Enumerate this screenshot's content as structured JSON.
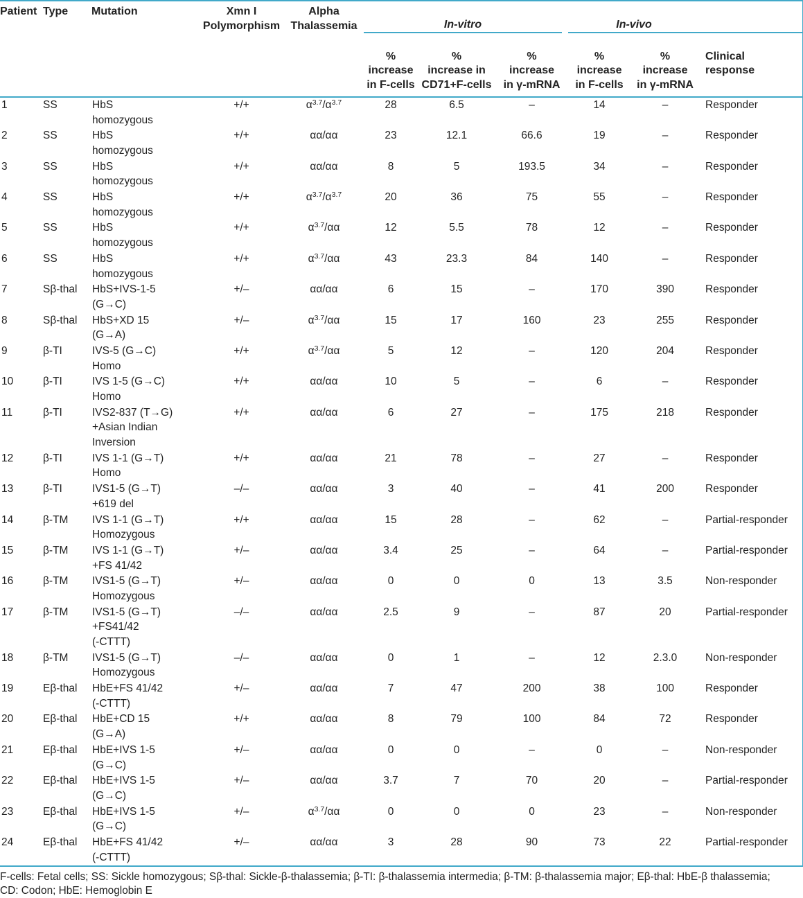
{
  "colors": {
    "rule": "#41a9c9",
    "text": "#232323"
  },
  "table": {
    "header": {
      "patient": "Patient",
      "type": "Type",
      "mutation": "Mutation",
      "xmn": "Xmn I\nPolymorphism",
      "alpha": "Alpha\nThalassemia",
      "invitro": "In-vitro",
      "invivo": "In-vivo",
      "sub_vitro_fcells": "%\nincrease\nin F-cells",
      "sub_vitro_cd71": "%\nincrease in\nCD71+F-cells",
      "sub_vitro_mrna": "%\nincrease\nin γ-mRNA",
      "sub_vivo_fcells": "%\nincrease\nin F-cells",
      "sub_vivo_mrna": "%\nincrease\nin γ-mRNA",
      "clinical": "Clinical\nresponse"
    },
    "rows": [
      [
        "1",
        "SS",
        "HbS\nhomozygous",
        "+/+",
        "α^3.7/α^3.7",
        "28",
        "6.5",
        "–",
        "14",
        "–",
        "Responder"
      ],
      [
        "2",
        "SS",
        "HbS\nhomozygous",
        "+/+",
        "αα/αα",
        "23",
        "12.1",
        "66.6",
        "19",
        "–",
        "Responder"
      ],
      [
        "3",
        "SS",
        "HbS\nhomozygous",
        "+/+",
        "αα/αα",
        "8",
        "5",
        "193.5",
        "34",
        "–",
        "Responder"
      ],
      [
        "4",
        "SS",
        "HbS\nhomozygous",
        "+/+",
        "α^3.7/α^3.7",
        "20",
        "36",
        "75",
        "55",
        "–",
        "Responder"
      ],
      [
        "5",
        "SS",
        "HbS\nhomozygous",
        "+/+",
        "α^3.7/αα",
        "12",
        "5.5",
        "78",
        "12",
        "–",
        "Responder"
      ],
      [
        "6",
        "SS",
        "HbS\nhomozygous",
        "+/+",
        "α^3.7/αα",
        "43",
        "23.3",
        "84",
        "140",
        "–",
        "Responder"
      ],
      [
        "7",
        "Sβ-thal",
        "HbS+IVS-1-5\n(G→C)",
        "+/–",
        "αα/αα",
        "6",
        "15",
        "–",
        "170",
        "390",
        "Responder"
      ],
      [
        "8",
        "Sβ-thal",
        "HbS+XD 15\n(G→A)",
        "+/–",
        "α^3.7/αα",
        "15",
        "17",
        "160",
        "23",
        "255",
        "Responder"
      ],
      [
        "9",
        "β-TI",
        "IVS-5 (G→C)\nHomo",
        "+/+",
        "α^3.7/αα",
        "5",
        "12",
        "–",
        "120",
        "204",
        "Responder"
      ],
      [
        "10",
        "β-TI",
        "IVS 1-5 (G→C)\nHomo",
        "+/+",
        "αα/αα",
        "10",
        "5",
        "–",
        "6",
        "–",
        "Responder"
      ],
      [
        "11",
        "β-TI",
        "IVS2-837 (T→G)\n+Asian Indian\nInversion",
        "+/+",
        "αα/αα",
        "6",
        "27",
        "–",
        "175",
        "218",
        "Responder"
      ],
      [
        "12",
        "β-TI",
        "IVS 1-1 (G→T)\nHomo",
        "+/+",
        "αα/αα",
        "21",
        "78",
        "–",
        "27",
        "–",
        "Responder"
      ],
      [
        "13",
        "β-TI",
        "IVS1-5 (G→T)\n+619 del",
        "–/–",
        "αα/αα",
        "3",
        "40",
        "–",
        "41",
        "200",
        "Responder"
      ],
      [
        "14",
        "β-TM",
        "IVS 1-1 (G→T)\nHomozygous",
        "+/+",
        "αα/αα",
        "15",
        "28",
        "–",
        "62",
        "–",
        "Partial-responder"
      ],
      [
        "15",
        "β-TM",
        "IVS 1-1 (G→T)\n+FS 41/42",
        "+/–",
        "αα/αα",
        "3.4",
        "25",
        "–",
        "64",
        "–",
        "Partial-responder"
      ],
      [
        "16",
        "β-TM",
        "IVS1-5 (G→T)\nHomozygous",
        "+/–",
        "αα/αα",
        "0",
        "0",
        "0",
        "13",
        "3.5",
        "Non-responder"
      ],
      [
        "17",
        "β-TM",
        "IVS1-5 (G→T)\n+FS41/42\n(-CTTT)",
        "–/–",
        "αα/αα",
        "2.5",
        "9",
        "–",
        "87",
        "20",
        "Partial-responder"
      ],
      [
        "18",
        "β-TM",
        "IVS1-5 (G→T)\nHomozygous",
        "–/–",
        "αα/αα",
        "0",
        "1",
        "–",
        "12",
        "2.3.0",
        "Non-responder"
      ],
      [
        "19",
        "Eβ-thal",
        "HbE+FS 41/42\n(-CTTT)",
        "+/–",
        "αα/αα",
        "7",
        "47",
        "200",
        "38",
        "100",
        "Responder"
      ],
      [
        "20",
        "Eβ-thal",
        "HbE+CD 15\n(G→A)",
        "+/+",
        "αα/αα",
        "8",
        "79",
        "100",
        "84",
        "72",
        "Responder"
      ],
      [
        "21",
        "Eβ-thal",
        "HbE+IVS 1-5\n(G→C)",
        "+/–",
        "αα/αα",
        "0",
        "0",
        "–",
        "0",
        "–",
        "Non-responder"
      ],
      [
        "22",
        "Eβ-thal",
        "HbE+IVS 1-5\n(G→C)",
        "+/–",
        "αα/αα",
        "3.7",
        "7",
        "70",
        "20",
        "–",
        "Partial-responder"
      ],
      [
        "23",
        "Eβ-thal",
        "HbE+IVS 1-5\n(G→C)",
        "+/–",
        "α^3.7/αα",
        "0",
        "0",
        "0",
        "23",
        "–",
        "Non-responder"
      ],
      [
        "24",
        "Eβ-thal",
        "HbE+FS 41/42\n(-CTTT)",
        "+/–",
        "αα/αα",
        "3",
        "28",
        "90",
        "73",
        "22",
        "Partial-responder"
      ]
    ],
    "footnote": "F-cells: Fetal cells; SS: Sickle homozygous; Sβ-thal: Sickle-β-thalassemia; β-TI: β-thalassemia intermedia; β-TM: β-thalassemia major; Eβ-thal: HbE-β thalassemia;\nCD: Codon; HbE: Hemoglobin E"
  }
}
